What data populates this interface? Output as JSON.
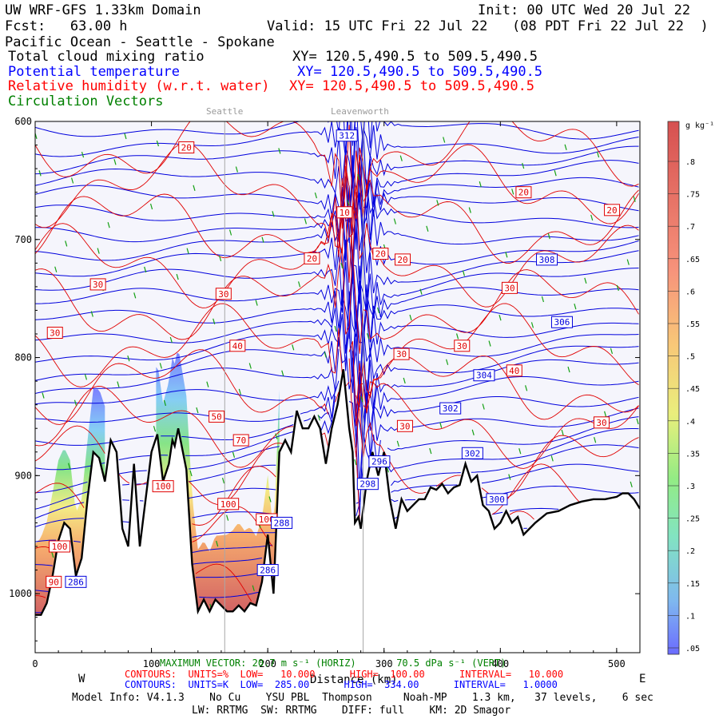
{
  "header": {
    "model": "UW WRF-GFS 1.33km Domain",
    "init": "Init: 00 UTC Wed 20 Jul 22",
    "fcst": "Fcst:   63.00 h",
    "valid": "Valid: 15 UTC Fri 22 Jul 22   (08 PDT Fri 22 Jul 22  )",
    "region": "Pacific Ocean - Seattle - Spokane",
    "fields": [
      {
        "name": "Total cloud mixing ratio",
        "xy": "XY= 120.5,490.5 to 509.5,490.5",
        "color": "#000000"
      },
      {
        "name": "Potential temperature",
        "xy": "XY= 120.5,490.5 to 509.5,490.5",
        "color": "#0000ff"
      },
      {
        "name": "Relative humidity (w.r.t. water)",
        "xy": "XY= 120.5,490.5 to 509.5,490.5",
        "color": "#ff0000"
      },
      {
        "name": "Circulation Vectors",
        "xy": "",
        "color": "#008000"
      }
    ]
  },
  "sites": [
    "Seattle",
    "Leavenworth"
  ],
  "footer": {
    "west": "W",
    "east": "E",
    "xlabel": "Distance (km)",
    "max_vector": "MAXIMUM VECTOR: 20.7 m s⁻¹ (HORIZ)       70.5 dPa s⁻¹ (VERT)",
    "rh_contours": "CONTOURS:  UNITS=%  LOW=   10.000      HIGH=  100.00      INTERVAL=   10.000",
    "theta_contours": "CONTOURS:  UNITS=K  LOW=  285.00      HIGH=  334.00      INTERVAL=   1.0000",
    "model_info": "Model Info: V4.1.3    No Cu    YSU PBL  Thompson     Noah-MP    1.3 km,   37 levels,    6 sec",
    "physics": "LW: RRTMG  SW: RRTMG    DIFF: full    KM: 2D Smagor"
  },
  "colorbar": {
    "unit": "g kg⁻¹",
    "ticks": [
      ".8",
      ".75",
      ".7",
      ".65",
      ".6",
      ".55",
      ".5",
      ".45",
      ".4",
      ".35",
      ".3",
      ".25",
      ".2",
      ".15",
      ".1",
      ".05"
    ]
  },
  "chart_data": {
    "type": "cross-section",
    "xlabel": "Distance (km)",
    "ylabel": "Pressure (hPa)",
    "xlim": [
      0,
      520
    ],
    "ylim": [
      1050,
      600
    ],
    "x_ticks": [
      0,
      100,
      200,
      300,
      400,
      500
    ],
    "y_ticks": [
      600,
      700,
      800,
      900,
      1000
    ],
    "site_markers": [
      {
        "name": "Seattle",
        "x": 163
      },
      {
        "name": "Leavenworth",
        "x": 282
      }
    ],
    "terrain": {
      "x": [
        0,
        5,
        10,
        15,
        20,
        25,
        30,
        35,
        40,
        45,
        50,
        55,
        60,
        65,
        70,
        75,
        80,
        85,
        90,
        95,
        100,
        105,
        110,
        115,
        118,
        120,
        123,
        125,
        130,
        135,
        140,
        145,
        150,
        155,
        160,
        165,
        170,
        175,
        180,
        185,
        190,
        195,
        200,
        205,
        210,
        215,
        220,
        225,
        230,
        235,
        240,
        245,
        250,
        255,
        260,
        265,
        270,
        273,
        275,
        278,
        280,
        285,
        290,
        295,
        300,
        305,
        310,
        315,
        320,
        325,
        330,
        335,
        340,
        345,
        350,
        355,
        360,
        365,
        370,
        375,
        380,
        385,
        390,
        395,
        400,
        405,
        410,
        415,
        420,
        430,
        440,
        450,
        460,
        470,
        480,
        490,
        500,
        505,
        510,
        515,
        520
      ],
      "p": [
        1018,
        1018,
        1008,
        985,
        955,
        940,
        945,
        985,
        970,
        920,
        880,
        885,
        905,
        870,
        880,
        945,
        960,
        890,
        960,
        920,
        880,
        865,
        905,
        890,
        870,
        875,
        860,
        870,
        895,
        975,
        1015,
        1005,
        1015,
        1005,
        1010,
        1015,
        1015,
        1010,
        1015,
        1008,
        1010,
        990,
        950,
        1000,
        880,
        870,
        880,
        845,
        860,
        860,
        850,
        860,
        890,
        860,
        840,
        810,
        860,
        880,
        940,
        935,
        945,
        905,
        880,
        900,
        880,
        920,
        945,
        920,
        930,
        925,
        920,
        920,
        910,
        912,
        907,
        915,
        910,
        908,
        890,
        905,
        900,
        925,
        930,
        945,
        940,
        930,
        940,
        935,
        950,
        940,
        932,
        930,
        925,
        922,
        920,
        920,
        918,
        915,
        915,
        920,
        928
      ]
    },
    "rh_contour_labels": [
      {
        "label": "20",
        "x": 130,
        "p": 622
      },
      {
        "label": "20",
        "x": 420,
        "p": 660
      },
      {
        "label": "20",
        "x": 496,
        "p": 675
      },
      {
        "label": "20",
        "x": 238,
        "p": 716
      },
      {
        "label": "20",
        "x": 297,
        "p": 712
      },
      {
        "label": "20",
        "x": 316,
        "p": 717
      },
      {
        "label": "10",
        "x": 266,
        "p": 677
      },
      {
        "label": "30",
        "x": 54,
        "p": 738
      },
      {
        "label": "30",
        "x": 162,
        "p": 746
      },
      {
        "label": "30",
        "x": 17,
        "p": 779
      },
      {
        "label": "30",
        "x": 408,
        "p": 741
      },
      {
        "label": "30",
        "x": 367,
        "p": 790
      },
      {
        "label": "30",
        "x": 315,
        "p": 797
      },
      {
        "label": "30",
        "x": 318,
        "p": 858
      },
      {
        "label": "30",
        "x": 487,
        "p": 855
      },
      {
        "label": "40",
        "x": 174,
        "p": 790
      },
      {
        "label": "40",
        "x": 412,
        "p": 811
      },
      {
        "label": "50",
        "x": 156,
        "p": 850
      },
      {
        "label": "70",
        "x": 177,
        "p": 870
      },
      {
        "label": "100",
        "x": 166,
        "p": 924
      },
      {
        "label": "100",
        "x": 21,
        "p": 960
      },
      {
        "label": "90",
        "x": 16,
        "p": 990
      },
      {
        "label": "100",
        "x": 199,
        "p": 937
      },
      {
        "label": "100",
        "x": 110,
        "p": 909
      }
    ],
    "theta_contour_labels": [
      {
        "label": "312",
        "x": 268,
        "p": 612
      },
      {
        "label": "308",
        "x": 440,
        "p": 717
      },
      {
        "label": "306",
        "x": 453,
        "p": 770
      },
      {
        "label": "304",
        "x": 386,
        "p": 815
      },
      {
        "label": "302",
        "x": 357,
        "p": 843
      },
      {
        "label": "302",
        "x": 376,
        "p": 881
      },
      {
        "label": "300",
        "x": 397,
        "p": 920
      },
      {
        "label": "296",
        "x": 296,
        "p": 888
      },
      {
        "label": "298",
        "x": 286,
        "p": 907
      },
      {
        "label": "288",
        "x": 212,
        "p": 940
      },
      {
        "label": "286",
        "x": 200,
        "p": 980
      },
      {
        "label": "286",
        "x": 35,
        "p": 990
      }
    ]
  }
}
